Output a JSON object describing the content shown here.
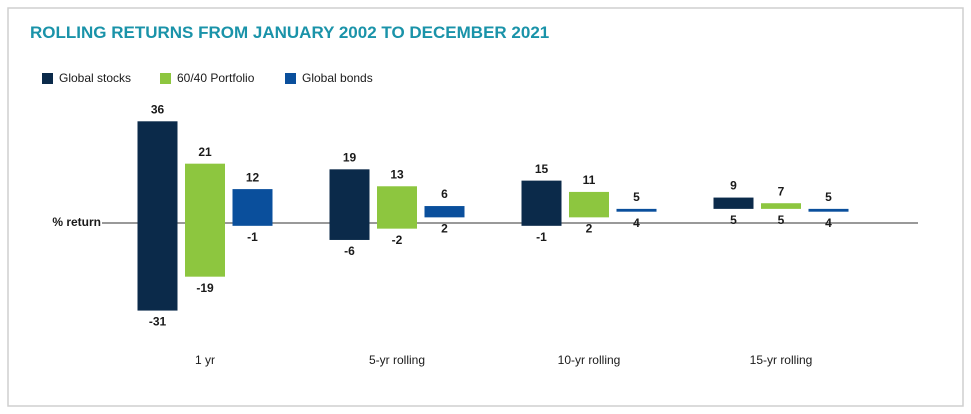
{
  "chart_data": {
    "type": "range-bar",
    "title": "ROLLING RETURNS FROM JANUARY 2002 TO DECEMBER 2021",
    "y_label": "% return",
    "categories": [
      "1 yr",
      "5-yr rolling",
      "10-yr rolling",
      "15-yr rolling"
    ],
    "series": [
      {
        "name": "Global stocks",
        "color": "#0b2a4a",
        "high": [
          36,
          19,
          15,
          9
        ],
        "low": [
          -31,
          -6,
          -1,
          5
        ]
      },
      {
        "name": "60/40 Portfolio",
        "color": "#8dc63f",
        "high": [
          21,
          13,
          11,
          7
        ],
        "low": [
          -19,
          -2,
          2,
          5
        ]
      },
      {
        "name": "Global bonds",
        "color": "#0a4f9c",
        "high": [
          12,
          6,
          5,
          5
        ],
        "low": [
          -1,
          2,
          4,
          4
        ]
      }
    ],
    "ylim": [
      -40,
      40
    ],
    "legend": "top-left"
  }
}
